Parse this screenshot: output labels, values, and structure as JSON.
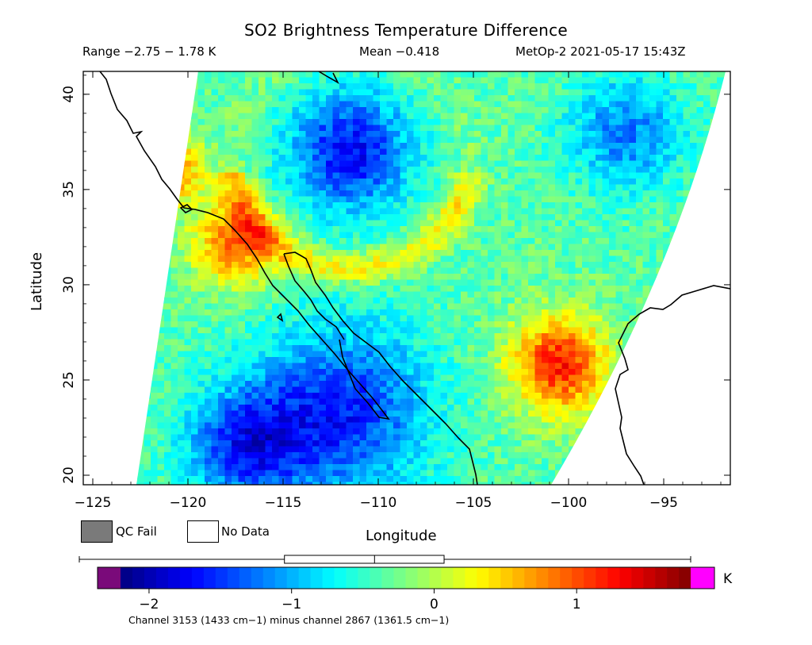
{
  "header": {
    "title": "SO2 Brightness Temperature Difference",
    "range_text": "Range −2.75 − 1.78 K",
    "mean_text": "Mean −0.418",
    "satellite_text": "MetOp-2 2021-05-17 15:43Z"
  },
  "axes": {
    "x_label": "Longitude",
    "y_label": "Latitude",
    "x_ticks": [
      "−125",
      "−120",
      "−115",
      "−110",
      "−105",
      "−100",
      "−95"
    ],
    "y_ticks": [
      "20",
      "25",
      "30",
      "35",
      "40"
    ],
    "x_range": [
      -125.5,
      -91.5
    ],
    "y_range": [
      19.5,
      41.2
    ]
  },
  "legend": {
    "qc_fail_label": "QC Fail",
    "no_data_label": "No Data",
    "qc_fail_color": "#7a7a7a",
    "no_data_color": "#ffffff"
  },
  "colorbar": {
    "unit": "K",
    "ticks": [
      "−2",
      "−1",
      "0",
      "1"
    ],
    "tick_values": [
      -2,
      -1,
      0,
      1
    ],
    "range": [
      -2.2,
      1.8
    ],
    "under_color": "#7a0a7a",
    "over_color": "#ff00ff",
    "stats_min": -2.75,
    "stats_max": 1.78,
    "stats_mean": -0.418
  },
  "footnote": "Channel 3153 (1433 cm−1) minus channel 2867 (1361.5 cm−1)",
  "chart_data": {
    "type": "heatmap",
    "title": "SO2 Brightness Temperature Difference",
    "xlabel": "Longitude",
    "ylabel": "Latitude",
    "xlim": [
      -125.5,
      -91.5
    ],
    "ylim": [
      19.5,
      41.2
    ],
    "value_range": [
      -2.75,
      1.78
    ],
    "mean": -0.418,
    "features": [
      {
        "lon": -111.5,
        "lat": 37,
        "value": -1.7,
        "radius": 3.2
      },
      {
        "lon": -112,
        "lat": 23.3,
        "value": -1.6,
        "radius": 4.5
      },
      {
        "lon": -117,
        "lat": 21.5,
        "value": -1.5,
        "radius": 3
      },
      {
        "lon": -100.5,
        "lat": 25.8,
        "value": 1.2,
        "radius": 2.6
      },
      {
        "lon": -117.5,
        "lat": 32.2,
        "value": 0.9,
        "radius": 2.2
      },
      {
        "lon": -121,
        "lat": 36,
        "value": 0.8,
        "radius": 1.8
      },
      {
        "lon": -97,
        "lat": 38,
        "value": -1.2,
        "radius": 3
      }
    ]
  }
}
